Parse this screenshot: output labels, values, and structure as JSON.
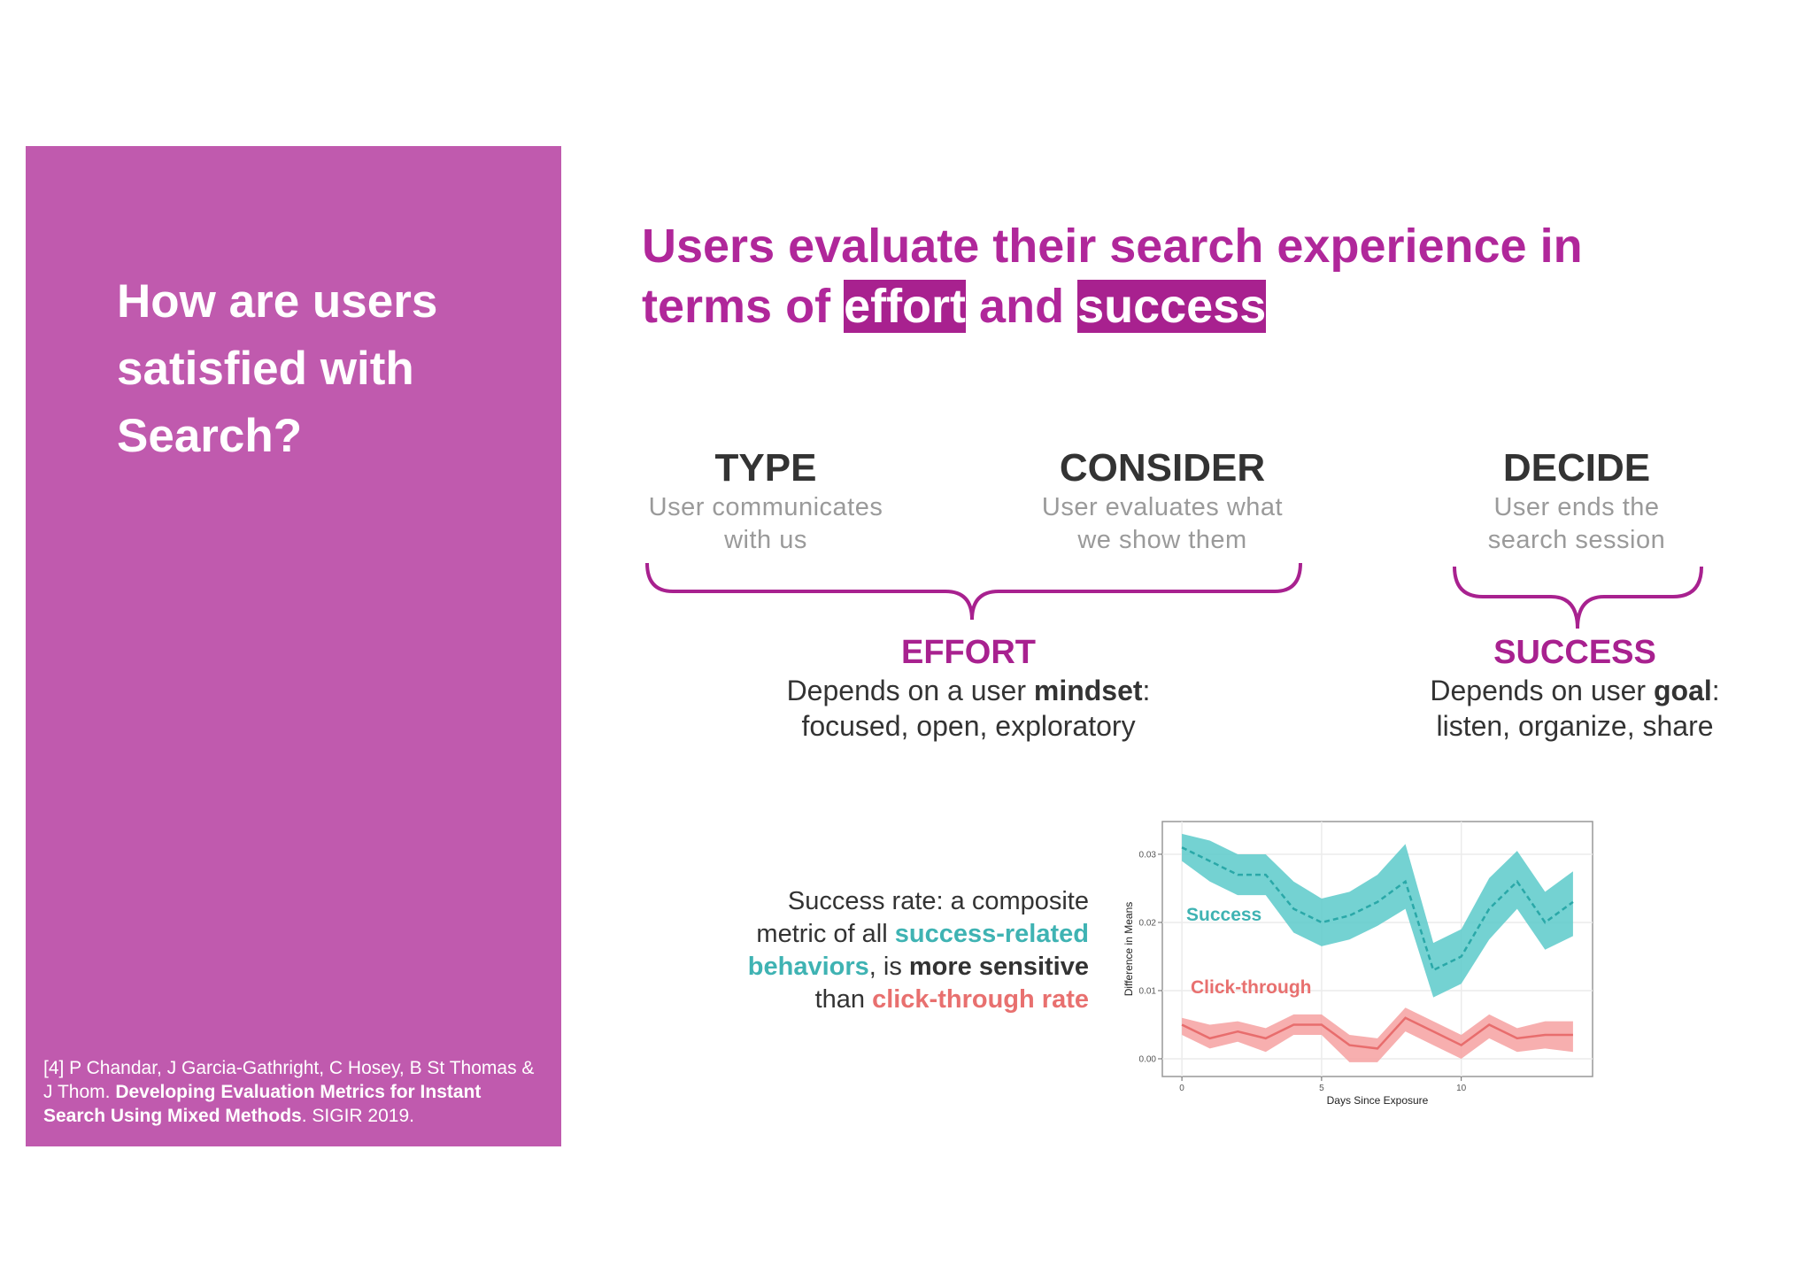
{
  "sidebar": {
    "title": "How are users satisfied with Search?",
    "citation": [
      "[4] P Chandar, J Garcia-Gathright, C Hosey, B St Thomas & J Thom. ",
      "Developing Evaluation Metrics for Instant Search Using Mixed Methods",
      ". SIGIR 2019."
    ]
  },
  "heading": [
    "Users evaluate their search experience in terms of ",
    "effort",
    " and ",
    "success"
  ],
  "steps": [
    {
      "title": "TYPE",
      "text": "User communicates with us"
    },
    {
      "title": "CONSIDER",
      "text": "User evaluates what we show them"
    },
    {
      "title": "DECIDE",
      "text": "User ends the search session"
    }
  ],
  "outcomes": [
    {
      "title": "EFFORT",
      "text": [
        "Depends on a user ",
        "mindset",
        ":"
      ],
      "detail": "focused, open, exploratory"
    },
    {
      "title": "SUCCESS",
      "text": [
        "Depends on user ",
        "goal",
        ":"
      ],
      "detail": "listen, organize, share"
    }
  ],
  "note": [
    "Success rate: a composite metric of all ",
    "success-related behaviors",
    ", is ",
    "more sensitive",
    " than ",
    "click-through rate"
  ],
  "chart": {
    "type": "line",
    "x_label": "Days Since Exposure",
    "y_label": "Difference in Means",
    "x": [
      0,
      1,
      2,
      3,
      4,
      5,
      6,
      7,
      8,
      9,
      10,
      11,
      12,
      13,
      14
    ],
    "xlim": [
      -0.7,
      14.7
    ],
    "xticks": [
      0,
      5,
      10
    ],
    "ylim": [
      -0.0026,
      0.0348
    ],
    "yticks": [
      {
        "value": 0,
        "label": "0.00"
      },
      0.01,
      0.02,
      0.03
    ],
    "grid": true,
    "series": [
      {
        "name": "Success",
        "color": "#2aa8a8",
        "band_color": "#5ccaca",
        "values": [
          0.031,
          0.029,
          0.027,
          0.027,
          0.022,
          0.02,
          0.021,
          0.023,
          0.026,
          0.013,
          0.015,
          0.022,
          0.026,
          0.02,
          0.023
        ],
        "upper": [
          0.033,
          0.032,
          0.03,
          0.03,
          0.026,
          0.0235,
          0.0245,
          0.027,
          0.0315,
          0.017,
          0.019,
          0.0265,
          0.0305,
          0.0245,
          0.0275
        ],
        "lower": [
          0.029,
          0.026,
          0.024,
          0.024,
          0.0185,
          0.0165,
          0.0175,
          0.0195,
          0.022,
          0.009,
          0.011,
          0.0175,
          0.022,
          0.016,
          0.018
        ]
      },
      {
        "name": "Click-through",
        "color": "#e86d6d",
        "band_color": "#f6a1a1",
        "values": [
          0.005,
          0.003,
          0.004,
          0.003,
          0.005,
          0.005,
          0.002,
          0.0015,
          0.006,
          0.004,
          0.002,
          0.005,
          0.003,
          0.0035,
          0.0035
        ],
        "upper": [
          0.006,
          0.005,
          0.0055,
          0.0045,
          0.0065,
          0.0065,
          0.0035,
          0.003,
          0.0075,
          0.0055,
          0.0035,
          0.0065,
          0.0045,
          0.0055,
          0.0055
        ],
        "lower": [
          0.0035,
          0.0015,
          0.0025,
          0.001,
          0.0035,
          0.0035,
          -0.0005,
          -0.0005,
          0.004,
          0.002,
          0,
          0.003,
          0.001,
          0.0015,
          0.001
        ]
      }
    ]
  }
}
